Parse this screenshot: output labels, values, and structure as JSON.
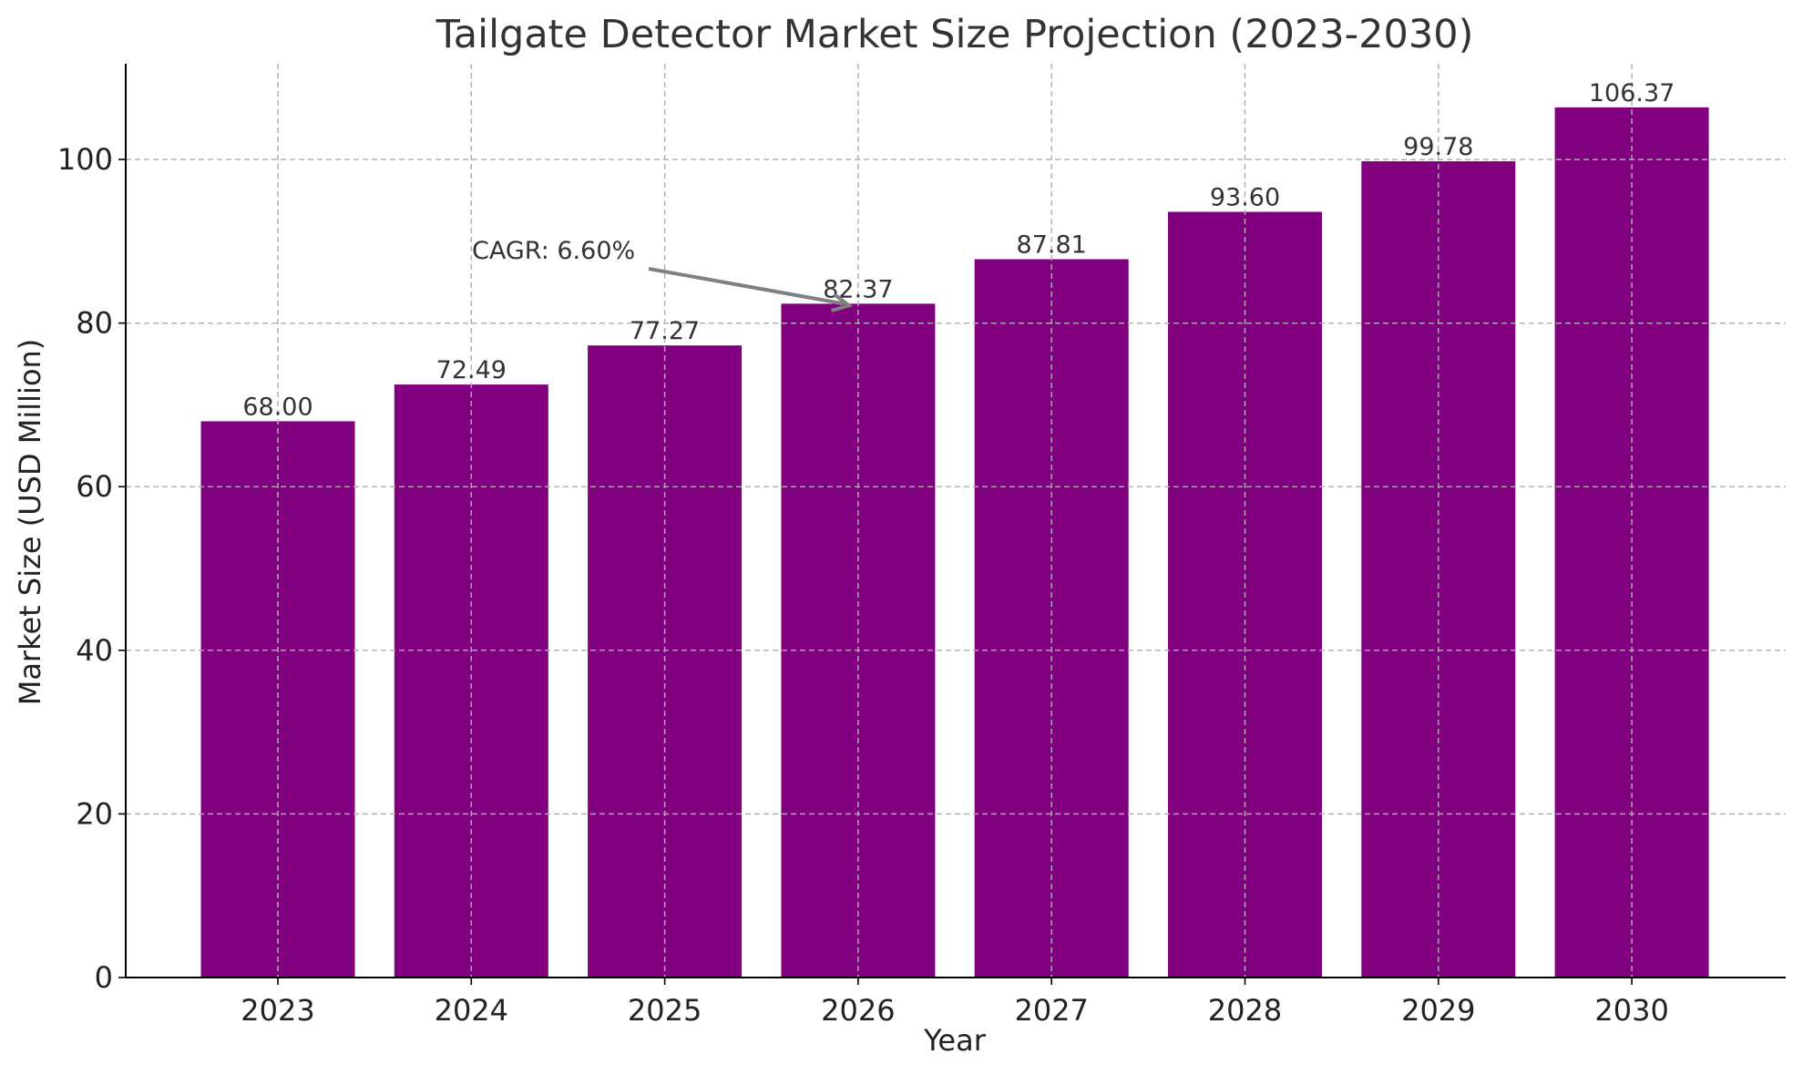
{
  "chart_data": {
    "type": "bar",
    "title": "Tailgate Detector Market Size Projection (2023-2030)",
    "xlabel": "Year",
    "ylabel": "Market Size (USD Million)",
    "categories": [
      "2023",
      "2024",
      "2025",
      "2026",
      "2027",
      "2028",
      "2029",
      "2030"
    ],
    "values": [
      68.0,
      72.49,
      77.27,
      82.37,
      87.81,
      93.6,
      99.78,
      106.37
    ],
    "value_labels": [
      "68.00",
      "72.49",
      "77.27",
      "82.37",
      "87.81",
      "93.60",
      "99.78",
      "106.37"
    ],
    "ylim": [
      0,
      111.7
    ],
    "yticks": [
      0,
      20,
      40,
      60,
      80,
      100
    ],
    "grid": true,
    "bar_color": "#800080",
    "annotation": {
      "text": "CAGR: 6.60%",
      "target_category": "2026",
      "target_value": 82.37,
      "arrow_color": "#808080"
    }
  }
}
